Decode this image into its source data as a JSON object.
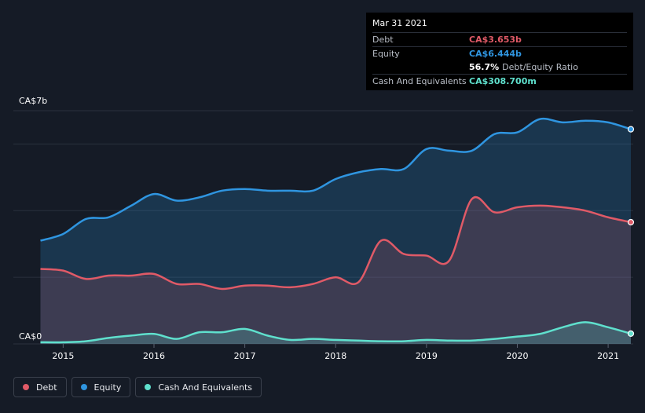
{
  "tooltip": {
    "date": "Mar 31 2021",
    "debt_label": "Debt",
    "debt_value": "CA$3.653b",
    "equity_label": "Equity",
    "equity_value": "CA$6.444b",
    "ratio_value": "56.7%",
    "ratio_label": "Debt/Equity Ratio",
    "cash_label": "Cash And Equivalents",
    "cash_value": "CA$308.700m"
  },
  "legend": [
    {
      "label": "Debt",
      "color": "#e05a67"
    },
    {
      "label": "Equity",
      "color": "#2f95e0"
    },
    {
      "label": "Cash And Equivalents",
      "color": "#5fe0cd"
    }
  ],
  "colors": {
    "debt": "#e05a67",
    "equity": "#2f95e0",
    "cash": "#5fe0cd"
  },
  "chart_data": {
    "type": "area",
    "y_top_label": "CA$7b",
    "y_bottom_label": "CA$0",
    "ylim": [
      0,
      7
    ],
    "x_ticks": [
      {
        "label": "2015",
        "x": 2015.0
      },
      {
        "label": "2016",
        "x": 2016.0
      },
      {
        "label": "2017",
        "x": 2017.0
      },
      {
        "label": "2018",
        "x": 2018.0
      },
      {
        "label": "2019",
        "x": 2019.0
      },
      {
        "label": "2020",
        "x": 2020.0
      },
      {
        "label": "2021",
        "x": 2021.0
      }
    ],
    "xlim": [
      2014.72,
      2021.25
    ],
    "series": [
      {
        "name": "Equity",
        "points": [
          [
            2014.75,
            3.1
          ],
          [
            2015.0,
            3.3
          ],
          [
            2015.25,
            3.75
          ],
          [
            2015.5,
            3.8
          ],
          [
            2015.75,
            4.15
          ],
          [
            2016.0,
            4.5
          ],
          [
            2016.25,
            4.3
          ],
          [
            2016.5,
            4.4
          ],
          [
            2016.75,
            4.6
          ],
          [
            2017.0,
            4.65
          ],
          [
            2017.25,
            4.6
          ],
          [
            2017.5,
            4.6
          ],
          [
            2017.75,
            4.6
          ],
          [
            2018.0,
            4.95
          ],
          [
            2018.25,
            5.15
          ],
          [
            2018.5,
            5.25
          ],
          [
            2018.75,
            5.25
          ],
          [
            2019.0,
            5.85
          ],
          [
            2019.25,
            5.8
          ],
          [
            2019.5,
            5.8
          ],
          [
            2019.75,
            6.3
          ],
          [
            2020.0,
            6.35
          ],
          [
            2020.25,
            6.75
          ],
          [
            2020.5,
            6.65
          ],
          [
            2020.75,
            6.7
          ],
          [
            2021.0,
            6.65
          ],
          [
            2021.25,
            6.444
          ]
        ]
      },
      {
        "name": "Debt",
        "points": [
          [
            2014.75,
            2.25
          ],
          [
            2015.0,
            2.2
          ],
          [
            2015.25,
            1.95
          ],
          [
            2015.5,
            2.05
          ],
          [
            2015.75,
            2.05
          ],
          [
            2016.0,
            2.1
          ],
          [
            2016.25,
            1.8
          ],
          [
            2016.5,
            1.8
          ],
          [
            2016.75,
            1.65
          ],
          [
            2017.0,
            1.75
          ],
          [
            2017.25,
            1.75
          ],
          [
            2017.5,
            1.7
          ],
          [
            2017.75,
            1.8
          ],
          [
            2018.0,
            2.0
          ],
          [
            2018.25,
            1.85
          ],
          [
            2018.5,
            3.1
          ],
          [
            2018.75,
            2.7
          ],
          [
            2019.0,
            2.65
          ],
          [
            2019.25,
            2.5
          ],
          [
            2019.5,
            4.35
          ],
          [
            2019.75,
            3.95
          ],
          [
            2020.0,
            4.1
          ],
          [
            2020.25,
            4.15
          ],
          [
            2020.5,
            4.1
          ],
          [
            2020.75,
            4.0
          ],
          [
            2021.0,
            3.8
          ],
          [
            2021.25,
            3.653
          ]
        ]
      },
      {
        "name": "Cash And Equivalents",
        "points": [
          [
            2014.75,
            0.05
          ],
          [
            2015.0,
            0.05
          ],
          [
            2015.25,
            0.08
          ],
          [
            2015.5,
            0.18
          ],
          [
            2015.75,
            0.25
          ],
          [
            2016.0,
            0.3
          ],
          [
            2016.25,
            0.15
          ],
          [
            2016.5,
            0.35
          ],
          [
            2016.75,
            0.35
          ],
          [
            2017.0,
            0.45
          ],
          [
            2017.25,
            0.25
          ],
          [
            2017.5,
            0.12
          ],
          [
            2017.75,
            0.15
          ],
          [
            2018.0,
            0.12
          ],
          [
            2018.25,
            0.1
          ],
          [
            2018.5,
            0.08
          ],
          [
            2018.75,
            0.08
          ],
          [
            2019.0,
            0.12
          ],
          [
            2019.25,
            0.1
          ],
          [
            2019.5,
            0.1
          ],
          [
            2019.75,
            0.15
          ],
          [
            2020.0,
            0.22
          ],
          [
            2020.25,
            0.3
          ],
          [
            2020.5,
            0.5
          ],
          [
            2020.75,
            0.65
          ],
          [
            2021.0,
            0.5
          ],
          [
            2021.25,
            0.309
          ]
        ]
      }
    ]
  }
}
